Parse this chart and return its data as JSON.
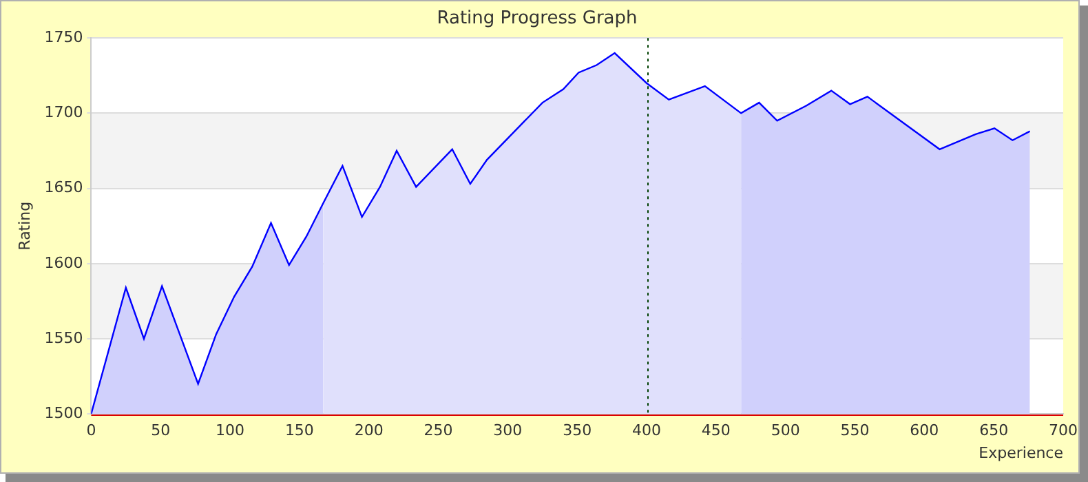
{
  "chart_data": {
    "type": "area",
    "title": "Rating Progress Graph",
    "xlabel": "Experience",
    "ylabel": "Rating",
    "series": [
      {
        "color": "#d0d0fc",
        "x": [
          0,
          25,
          38,
          51,
          67,
          77,
          90,
          103,
          116,
          129.5,
          142.5,
          155,
          167
        ],
        "values": [
          1500,
          1584,
          1550,
          1585,
          1545,
          1520,
          1553,
          1578,
          1598,
          1627,
          1599,
          1618,
          1640
        ]
      },
      {
        "color": "#e0e0fc",
        "x": [
          167,
          181,
          195,
          208,
          220,
          234,
          260,
          273,
          285,
          325,
          340,
          351,
          364,
          377,
          400,
          416,
          442,
          468
        ],
        "values": [
          1640,
          1665,
          1631,
          1651,
          1675,
          1651,
          1676,
          1653,
          1669,
          1707,
          1716,
          1727,
          1732,
          1740,
          1720,
          1709,
          1718,
          1700
        ]
      },
      {
        "color": "#d0d0fc",
        "x": [
          468,
          481,
          494,
          515,
          533,
          546.5,
          559,
          611,
          637,
          650.5,
          663.5,
          676
        ],
        "values": [
          1700,
          1707,
          1695,
          1705,
          1715,
          1706,
          1711,
          1676,
          1686,
          1690,
          1682,
          1688
        ]
      },
      {
        "type": "line",
        "color": "#0000ff",
        "x": [
          0,
          25,
          38,
          51,
          67,
          77,
          90,
          103,
          116,
          129.5,
          142.5,
          155,
          167,
          181,
          195,
          208,
          220,
          234,
          260,
          273,
          285,
          325,
          340,
          351,
          364,
          377,
          400,
          416,
          442,
          468,
          481,
          494,
          515,
          533,
          546.5,
          559,
          611,
          637,
          650.5,
          663.5,
          676
        ],
        "values": [
          1500,
          1584,
          1550,
          1585,
          1545,
          1520,
          1553,
          1578,
          1598,
          1627,
          1599,
          1618,
          1640,
          1665,
          1631,
          1651,
          1675,
          1651,
          1676,
          1653,
          1669,
          1707,
          1716,
          1727,
          1732,
          1740,
          1720,
          1709,
          1718,
          1700,
          1707,
          1695,
          1705,
          1715,
          1706,
          1711,
          1676,
          1686,
          1690,
          1682,
          1688
        ]
      }
    ],
    "xlim": [
      0,
      700
    ],
    "xticks": [
      0,
      50,
      100,
      150,
      200,
      250,
      300,
      350,
      400,
      450,
      500,
      550,
      600,
      650,
      700
    ],
    "ylim": [
      1500,
      1750
    ],
    "yticks": [
      1500,
      1550,
      1600,
      1650,
      1700,
      1750
    ],
    "grid": "y",
    "ref_lines": [
      {
        "axis": "x",
        "value": 400,
        "color": "#004000",
        "line_style": "dotted"
      }
    ]
  }
}
